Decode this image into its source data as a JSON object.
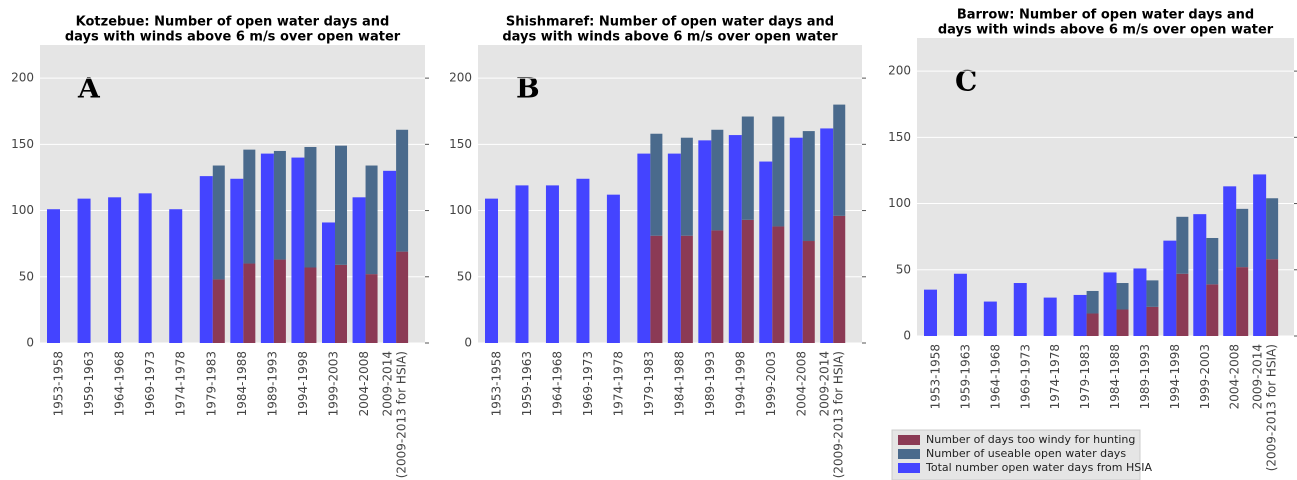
{
  "chart_data": [
    {
      "type": "bar",
      "title": [
        "Kotzebue: Number of open water days and",
        "days with winds above 6 m/s over open water"
      ],
      "annotation": "A",
      "categories": [
        "1953-1958",
        "1959-1963",
        "1964-1968",
        "1969-1973",
        "1974-1978",
        "1979-1983",
        "1984-1988",
        "1989-1993",
        "1994-1998",
        "1999-2003",
        "2004-2008",
        [
          "2009-2014",
          "(2009-2013 for HSIA)"
        ]
      ],
      "series": [
        {
          "name": "Number of days too windy for hunting",
          "color": "#8b3a55",
          "values": [
            null,
            null,
            null,
            null,
            null,
            48,
            60,
            63,
            57,
            59,
            52,
            69
          ]
        },
        {
          "name": "Number of useable open water days",
          "color": "#4a6a8c",
          "values": [
            null,
            null,
            null,
            null,
            null,
            86,
            86,
            82,
            91,
            90,
            82,
            92
          ]
        },
        {
          "name": "Total number open water days from HSIA",
          "color": "#4444ff",
          "values": [
            101,
            109,
            110,
            113,
            101,
            126,
            124,
            143,
            140,
            91,
            110,
            130
          ]
        }
      ],
      "ylim": [
        0,
        225
      ],
      "yticks": [
        0,
        50,
        100,
        150,
        200
      ],
      "grid": true
    },
    {
      "type": "bar",
      "title": [
        "Shishmaref: Number of open water days and",
        "days with winds above 6 m/s over open water"
      ],
      "annotation": "B",
      "categories": [
        "1953-1958",
        "1959-1963",
        "1964-1968",
        "1969-1973",
        "1974-1978",
        "1979-1983",
        "1984-1988",
        "1989-1993",
        "1994-1998",
        "1999-2003",
        "2004-2008",
        [
          "2009-2014",
          "(2009-2013 for HSIA)"
        ]
      ],
      "series": [
        {
          "name": "Number of days too windy for hunting",
          "color": "#8b3a55",
          "values": [
            null,
            null,
            null,
            null,
            null,
            81,
            81,
            85,
            93,
            88,
            77,
            96
          ]
        },
        {
          "name": "Number of useable open water days",
          "color": "#4a6a8c",
          "values": [
            null,
            null,
            null,
            null,
            null,
            77,
            74,
            76,
            78,
            83,
            83,
            84
          ]
        },
        {
          "name": "Total number open water days from HSIA",
          "color": "#4444ff",
          "values": [
            109,
            119,
            119,
            124,
            112,
            143,
            143,
            153,
            157,
            137,
            155,
            162
          ]
        }
      ],
      "ylim": [
        0,
        225
      ],
      "yticks": [
        0,
        50,
        100,
        150,
        200
      ],
      "grid": true
    },
    {
      "type": "bar",
      "title": [
        "Barrow: Number of open water days and",
        "days with winds above 6 m/s over open water"
      ],
      "annotation": "C",
      "categories": [
        "1953-1958",
        "1959-1963",
        "1964-1968",
        "1969-1973",
        "1974-1978",
        "1979-1983",
        "1984-1988",
        "1989-1993",
        "1994-1998",
        "1999-2003",
        "2004-2008",
        [
          "2009-2014",
          "(2009-2013 for HSIA)"
        ]
      ],
      "series": [
        {
          "name": "Number of days too windy for hunting",
          "color": "#8b3a55",
          "values": [
            null,
            null,
            null,
            null,
            null,
            17,
            20,
            22,
            47,
            39,
            52,
            58
          ]
        },
        {
          "name": "Number of useable open water days",
          "color": "#4a6a8c",
          "values": [
            null,
            null,
            null,
            null,
            null,
            17,
            20,
            20,
            43,
            35,
            44,
            46
          ]
        },
        {
          "name": "Total number open water days from HSIA",
          "color": "#4444ff",
          "values": [
            35,
            47,
            26,
            40,
            29,
            31,
            48,
            51,
            72,
            92,
            113,
            122
          ]
        }
      ],
      "ylim": [
        0,
        225
      ],
      "yticks": [
        0,
        50,
        100,
        150,
        200
      ],
      "grid": true,
      "legend": "below"
    }
  ]
}
